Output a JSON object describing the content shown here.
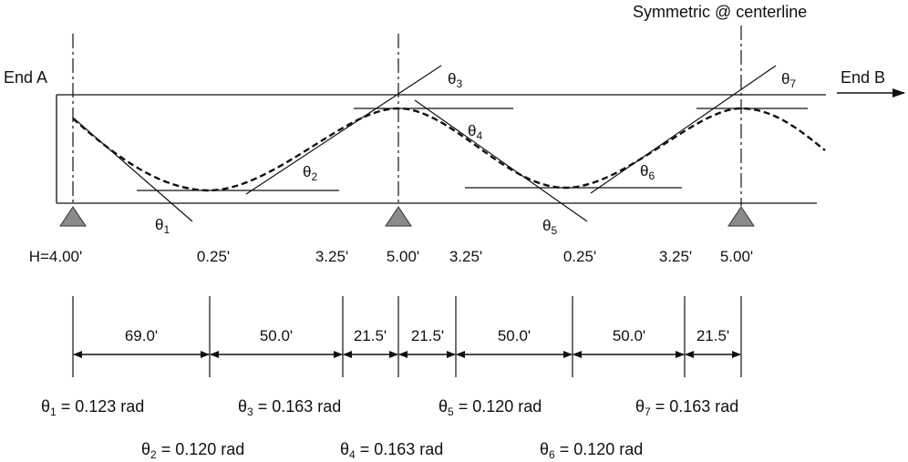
{
  "labels": {
    "end_a": "End A",
    "end_b": "End B",
    "symmetric": "Symmetric @ centerline"
  },
  "theta_labels": [
    {
      "base": "θ",
      "sub": "1"
    },
    {
      "base": "θ",
      "sub": "2"
    },
    {
      "base": "θ",
      "sub": "3"
    },
    {
      "base": "θ",
      "sub": "4"
    },
    {
      "base": "θ",
      "sub": "5"
    },
    {
      "base": "θ",
      "sub": "6"
    },
    {
      "base": "θ",
      "sub": "7"
    }
  ],
  "heights": [
    "H=4.00'",
    "0.25'",
    "3.25'",
    "5.00'",
    "3.25'",
    "0.25'",
    "3.25'",
    "5.00'"
  ],
  "spans": [
    "69.0'",
    "50.0'",
    "21.5'",
    "21.5'",
    "50.0'",
    "50.0'",
    "21.5'"
  ],
  "angle_values": [
    {
      "base": "θ",
      "sub": "1",
      "value": " = 0.123 rad"
    },
    {
      "base": "θ",
      "sub": "3",
      "value": " = 0.163 rad"
    },
    {
      "base": "θ",
      "sub": "5",
      "value": " = 0.120 rad"
    },
    {
      "base": "θ",
      "sub": "7",
      "value": " = 0.163 rad"
    },
    {
      "base": "θ",
      "sub": "2",
      "value": " = 0.120 rad"
    },
    {
      "base": "θ",
      "sub": "4",
      "value": " = 0.163 rad"
    },
    {
      "base": "θ",
      "sub": "6",
      "value": " = 0.120 rad"
    }
  ],
  "colors": {
    "ink": "#111111",
    "support": "#8a8a8a"
  }
}
